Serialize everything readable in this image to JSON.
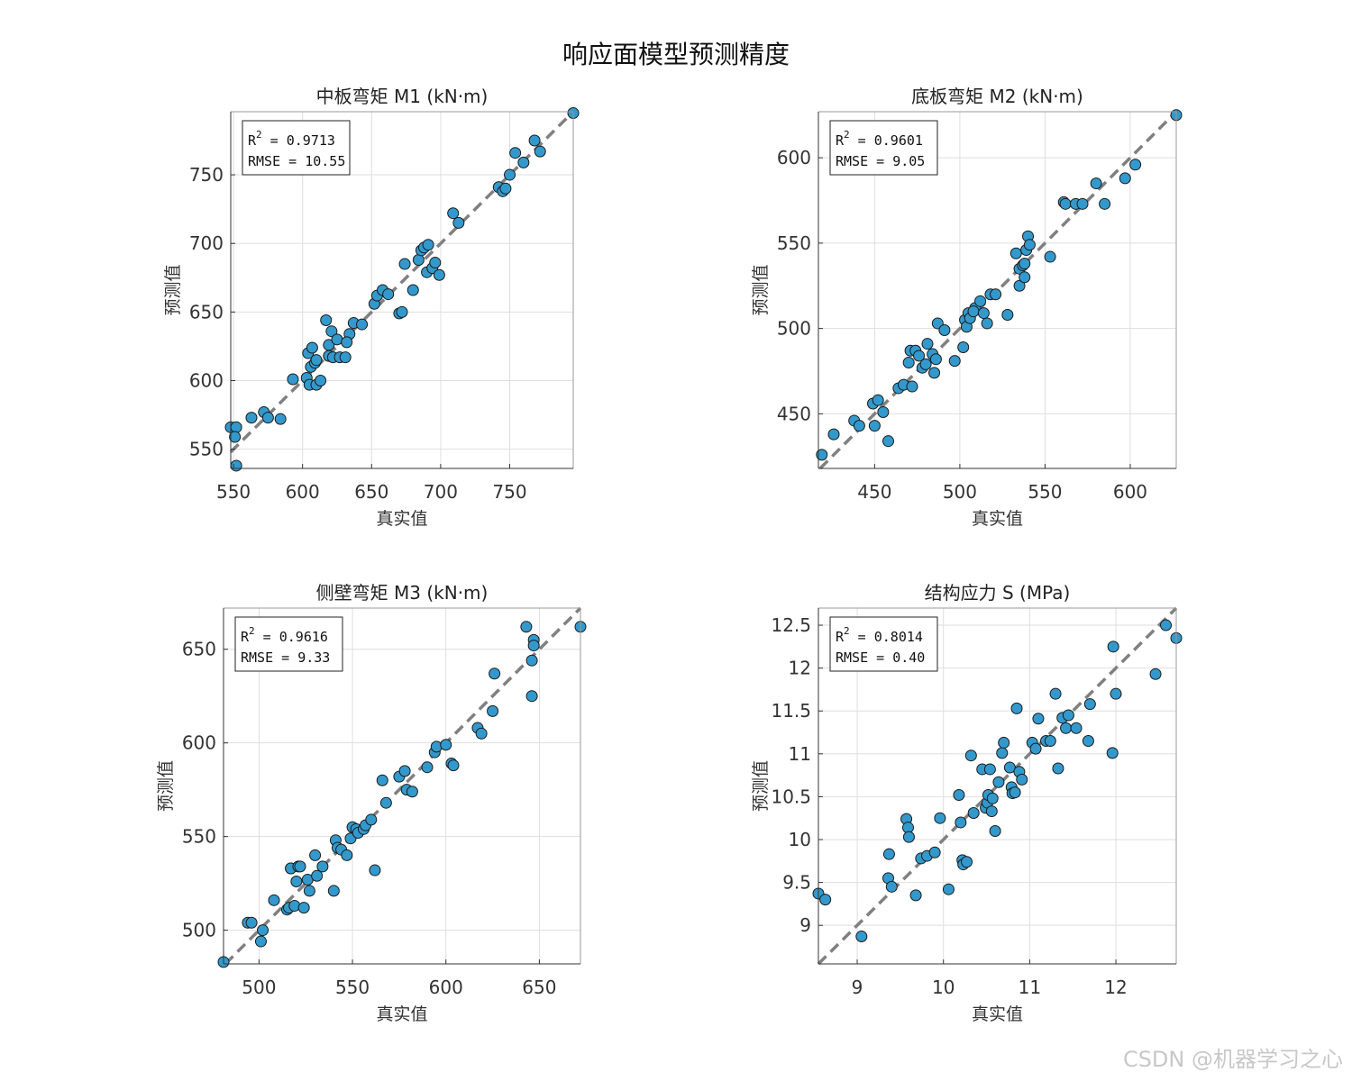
{
  "figure": {
    "title": "响应面模型预测精度",
    "watermark": "CSDN @机器学习之心",
    "marker_color": "#3399cc",
    "marker_edge": "#1a1a1a",
    "diagonal_color": "#808080"
  },
  "chart_data": [
    {
      "type": "scatter",
      "title": "中板弯矩 M1 (kN·m)",
      "xlabel": "真实值",
      "ylabel": "预测值",
      "r2_label": "R",
      "r2_sup": "2",
      "r2_value": " = 0.9713",
      "rmse_text": "RMSE = 10.55",
      "xlim": [
        548,
        796
      ],
      "ylim": [
        536,
        796
      ],
      "xticks": [
        "550",
        "600",
        "650",
        "700",
        "750"
      ],
      "xtick_values": [
        550,
        600,
        650,
        700,
        750
      ],
      "yticks": [
        "550",
        "600",
        "650",
        "700",
        "750"
      ],
      "ytick_values": [
        550,
        600,
        650,
        700,
        750
      ],
      "x": [
        548,
        552,
        551,
        552,
        563,
        572,
        575,
        584,
        593,
        603,
        605,
        606,
        604,
        607,
        610,
        613,
        609,
        610,
        619,
        617,
        622,
        619,
        621,
        625,
        627,
        631,
        634,
        632,
        637,
        643,
        652,
        654,
        658,
        662,
        670,
        672,
        674,
        680,
        684,
        686,
        688,
        690,
        694,
        696,
        691,
        699,
        709,
        713,
        742,
        745,
        747,
        750,
        754,
        760,
        768,
        772,
        796
      ],
      "y": [
        566,
        566,
        559,
        538,
        573,
        577,
        573,
        572,
        601,
        602,
        597,
        610,
        620,
        624,
        597,
        600,
        613,
        615,
        618,
        644,
        617,
        626,
        636,
        630,
        617,
        617,
        634,
        628,
        642,
        641,
        656,
        662,
        666,
        663,
        649,
        650,
        685,
        666,
        688,
        695,
        697,
        679,
        682,
        686,
        699,
        677,
        722,
        715,
        741,
        738,
        740,
        750,
        766,
        759,
        775,
        767,
        795
      ]
    },
    {
      "type": "scatter",
      "title": "底板弯矩 M2 (kN·m)",
      "xlabel": "真实值",
      "ylabel": "预测值",
      "r2_label": "R",
      "r2_sup": "2",
      "r2_value": " = 0.9601",
      "rmse_text": "RMSE = 9.05",
      "xlim": [
        417,
        627
      ],
      "ylim": [
        418,
        627
      ],
      "xticks": [
        "450",
        "500",
        "550",
        "600"
      ],
      "xtick_values": [
        450,
        500,
        550,
        600
      ],
      "yticks": [
        "450",
        "500",
        "550",
        "600"
      ],
      "ytick_values": [
        450,
        500,
        550,
        600
      ],
      "x": [
        419,
        426,
        438,
        441,
        449,
        452,
        450,
        455,
        458,
        464,
        467,
        470,
        471,
        472,
        474,
        476,
        478,
        480,
        481,
        485,
        484,
        486,
        487,
        491,
        497,
        502,
        503,
        504,
        505,
        506,
        509,
        508,
        512,
        514,
        516,
        518,
        521,
        528,
        533,
        535,
        535,
        537,
        538,
        538,
        539,
        540,
        541,
        553,
        561,
        562,
        568,
        572,
        580,
        585,
        597,
        603,
        627
      ],
      "y": [
        426,
        438,
        446,
        443,
        456,
        458,
        443,
        451,
        434,
        465,
        467,
        480,
        487,
        466,
        487,
        484,
        477,
        479,
        491,
        474,
        485,
        482,
        503,
        499,
        481,
        489,
        505,
        501,
        509,
        506,
        512,
        510,
        516,
        509,
        503,
        520,
        520,
        508,
        544,
        535,
        525,
        537,
        538,
        530,
        546,
        554,
        549,
        542,
        574,
        573,
        573,
        573,
        585,
        573,
        588,
        596,
        625
      ]
    },
    {
      "type": "scatter",
      "title": "侧壁弯矩 M3 (kN·m)",
      "xlabel": "真实值",
      "ylabel": "预测值",
      "r2_label": "R",
      "r2_sup": "2",
      "r2_value": " = 0.9616",
      "rmse_text": "RMSE = 9.33",
      "xlim": [
        481,
        672
      ],
      "ylim": [
        482,
        672
      ],
      "xticks": [
        "500",
        "550",
        "600",
        "650"
      ],
      "xtick_values": [
        500,
        550,
        600,
        650
      ],
      "yticks": [
        "500",
        "550",
        "600",
        "650"
      ],
      "ytick_values": [
        500,
        550,
        600,
        650
      ],
      "x": [
        481,
        494,
        496,
        501,
        502,
        508,
        515,
        516,
        517,
        517,
        519,
        520,
        521,
        522,
        524,
        526,
        527,
        530,
        531,
        534,
        540,
        541,
        542,
        544,
        547,
        549,
        550,
        552,
        553,
        556,
        557,
        560,
        562,
        566,
        568,
        575,
        578,
        579,
        582,
        590,
        594,
        595,
        600,
        603,
        604,
        617,
        619,
        625,
        626,
        643,
        646,
        646,
        647,
        647,
        672
      ],
      "y": [
        483,
        504,
        504,
        494,
        500,
        516,
        511,
        512,
        533,
        533,
        513,
        526,
        534,
        534,
        512,
        527,
        521,
        540,
        529,
        534,
        521,
        548,
        544,
        543,
        540,
        549,
        555,
        554,
        552,
        554,
        556,
        559,
        532,
        580,
        568,
        582,
        585,
        575,
        574,
        587,
        595,
        598,
        599,
        589,
        588,
        608,
        605,
        617,
        637,
        662,
        644,
        625,
        655,
        652,
        662
      ]
    },
    {
      "type": "scatter",
      "title": "结构应力 S (MPa)",
      "xlabel": "真实值",
      "ylabel": "预测值",
      "r2_label": "R",
      "r2_sup": "2",
      "r2_value": " = 0.8014",
      "rmse_text": "RMSE = 0.40",
      "xlim": [
        8.55,
        12.7
      ],
      "ylim": [
        8.55,
        12.7
      ],
      "xticks": [
        "9",
        "10",
        "11",
        "12"
      ],
      "xtick_values": [
        9,
        10,
        11,
        12
      ],
      "yticks": [
        "9",
        "9.5",
        "10",
        "10.5",
        "11",
        "11.5",
        "12",
        "12.5"
      ],
      "ytick_values": [
        9,
        9.5,
        10,
        10.5,
        11,
        11.5,
        12,
        12.5
      ],
      "x": [
        8.55,
        8.63,
        9.05,
        9.36,
        9.37,
        9.4,
        9.57,
        9.59,
        9.6,
        9.68,
        9.74,
        9.81,
        9.9,
        9.96,
        10.06,
        10.18,
        10.2,
        10.22,
        10.23,
        10.27,
        10.32,
        10.35,
        10.45,
        10.49,
        10.51,
        10.52,
        10.54,
        10.56,
        10.57,
        10.6,
        10.64,
        10.68,
        10.7,
        10.77,
        10.79,
        10.8,
        10.83,
        10.85,
        10.88,
        10.91,
        11.03,
        11.07,
        11.1,
        11.19,
        11.24,
        11.3,
        11.33,
        11.38,
        11.42,
        11.45,
        11.54,
        11.68,
        11.7,
        11.96,
        11.97,
        12.0,
        12.46,
        12.58,
        12.7
      ],
      "y": [
        9.37,
        9.3,
        8.87,
        9.55,
        9.83,
        9.45,
        10.24,
        10.14,
        10.03,
        9.35,
        9.78,
        9.81,
        9.85,
        10.25,
        9.42,
        10.52,
        10.2,
        9.76,
        9.71,
        9.74,
        10.98,
        10.31,
        10.82,
        10.37,
        10.43,
        10.52,
        10.82,
        10.33,
        10.48,
        10.1,
        10.67,
        11.01,
        11.13,
        10.84,
        10.61,
        10.54,
        10.55,
        11.53,
        10.79,
        10.7,
        11.13,
        11.06,
        11.41,
        11.15,
        11.15,
        11.7,
        10.83,
        11.42,
        11.3,
        11.45,
        11.3,
        11.15,
        11.58,
        11.01,
        12.25,
        11.7,
        11.93,
        12.5,
        12.35
      ]
    }
  ]
}
